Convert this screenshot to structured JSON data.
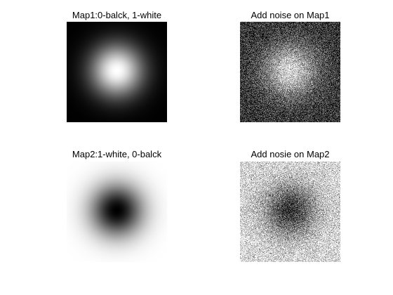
{
  "panels": [
    {
      "title": "Map1:0-balck, 1-white",
      "map": "bright-center",
      "noise": false
    },
    {
      "title": "Add noise on Map1",
      "map": "bright-center",
      "noise": true
    },
    {
      "title": "Map2:1-white, 0-balck",
      "map": "dark-center",
      "noise": false
    },
    {
      "title": "Add nosie on Map2",
      "map": "dark-center",
      "noise": true
    }
  ],
  "colors": {
    "background": "#ffffff",
    "text": "#000000"
  }
}
